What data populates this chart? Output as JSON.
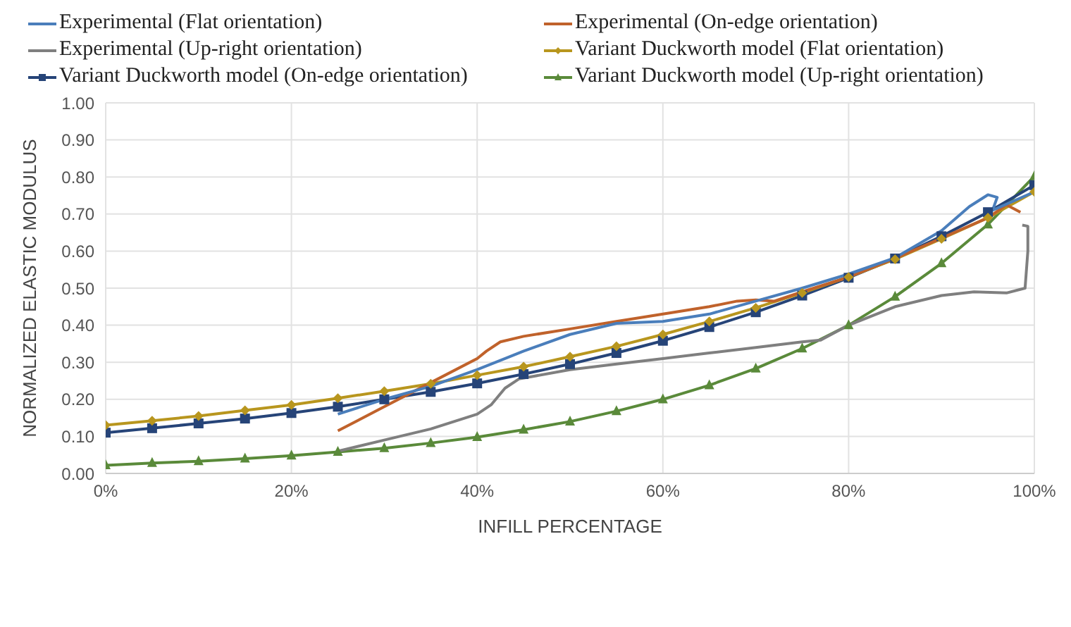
{
  "chart_data": {
    "type": "line",
    "xlabel": "INFILL PERCENTAGE",
    "ylabel": "NORMALIZED ELASTIC MODULUS",
    "xlim": [
      0,
      100
    ],
    "xticks": [
      {
        "value": 0,
        "label": "0%"
      },
      {
        "value": 20,
        "label": "20%"
      },
      {
        "value": 40,
        "label": "40%"
      },
      {
        "value": 60,
        "label": "60%"
      },
      {
        "value": 80,
        "label": "80%"
      },
      {
        "value": 100,
        "label": "100%"
      }
    ],
    "ylim": [
      0,
      1
    ],
    "yticks": [
      {
        "value": 0,
        "label": "0.00"
      },
      {
        "value": 0.1,
        "label": "0.10"
      },
      {
        "value": 0.2,
        "label": "0.20"
      },
      {
        "value": 0.3,
        "label": "0.30"
      },
      {
        "value": 0.4,
        "label": "0.40"
      },
      {
        "value": 0.5,
        "label": "0.50"
      },
      {
        "value": 0.6,
        "label": "0.60"
      },
      {
        "value": 0.7,
        "label": "0.70"
      },
      {
        "value": 0.8,
        "label": "0.80"
      },
      {
        "value": 0.9,
        "label": "0.90"
      },
      {
        "value": 1,
        "label": "1.00"
      }
    ],
    "grid": true,
    "legend": "top",
    "series": [
      {
        "name": "Experimental (Flat orientation)",
        "color": "#4a7ebb",
        "marker": "none",
        "x": [
          25,
          30,
          35,
          40,
          45,
          50,
          55,
          60,
          65,
          70,
          75,
          80,
          85,
          90,
          93,
          95,
          96,
          95.5,
          100
        ],
        "values": [
          0.16,
          0.2,
          0.235,
          0.28,
          0.33,
          0.375,
          0.405,
          0.41,
          0.43,
          0.465,
          0.5,
          0.538,
          0.582,
          0.655,
          0.72,
          0.752,
          0.745,
          0.71,
          0.76
        ]
      },
      {
        "name": "Experimental (On-edge orientation)",
        "color": "#c0622b",
        "marker": "none",
        "x": [
          25,
          30,
          35,
          40,
          41,
          42.5,
          45,
          50,
          55,
          60,
          65,
          68,
          70,
          72,
          75,
          80,
          85,
          90,
          95,
          97,
          98.5
        ],
        "values": [
          0.115,
          0.18,
          0.245,
          0.31,
          0.33,
          0.355,
          0.37,
          0.39,
          0.41,
          0.43,
          0.45,
          0.465,
          0.468,
          0.465,
          0.49,
          0.53,
          0.58,
          0.635,
          0.69,
          0.725,
          0.705
        ]
      },
      {
        "name": "Experimental (Up-right orientation)",
        "color": "#7f7f7f",
        "marker": "none",
        "x": [
          25,
          30,
          35,
          40,
          41.5,
          43,
          44.5,
          50,
          55,
          60,
          65,
          70,
          75,
          77,
          80,
          85,
          90,
          93.5,
          97,
          99,
          99.3,
          99.3,
          98.7
        ],
        "values": [
          0.06,
          0.09,
          0.12,
          0.16,
          0.185,
          0.23,
          0.255,
          0.28,
          0.295,
          0.31,
          0.325,
          0.34,
          0.355,
          0.36,
          0.4,
          0.45,
          0.48,
          0.49,
          0.487,
          0.5,
          0.6,
          0.667,
          0.67
        ]
      },
      {
        "name": "Variant Duckworth model (Flat orientation)",
        "color": "#b8961e",
        "marker": "diamond",
        "x": [
          0,
          5,
          10,
          15,
          20,
          25,
          30,
          35,
          40,
          45,
          50,
          55,
          60,
          65,
          70,
          75,
          80,
          85,
          90,
          95,
          100
        ],
        "values": [
          0.13,
          0.142,
          0.155,
          0.17,
          0.185,
          0.203,
          0.222,
          0.242,
          0.265,
          0.288,
          0.315,
          0.343,
          0.375,
          0.41,
          0.447,
          0.487,
          0.53,
          0.578,
          0.633,
          0.69,
          0.76
        ]
      },
      {
        "name": "Variant Duckworth model (On-edge orientation)",
        "color": "#264478",
        "marker": "square",
        "x": [
          0,
          5,
          10,
          15,
          20,
          25,
          30,
          35,
          40,
          45,
          50,
          55,
          60,
          65,
          70,
          75,
          80,
          85,
          90,
          95,
          100
        ],
        "values": [
          0.11,
          0.122,
          0.135,
          0.148,
          0.163,
          0.18,
          0.2,
          0.22,
          0.243,
          0.268,
          0.295,
          0.325,
          0.358,
          0.395,
          0.435,
          0.48,
          0.528,
          0.58,
          0.64,
          0.705,
          0.778
        ]
      },
      {
        "name": "Variant Duckworth model (Up-right orientation)",
        "color": "#5a8a3a",
        "marker": "triangle",
        "x": [
          0,
          5,
          10,
          15,
          20,
          25,
          30,
          35,
          40,
          45,
          50,
          55,
          60,
          65,
          70,
          75,
          80,
          85,
          90,
          95,
          100
        ],
        "values": [
          0.022,
          0.028,
          0.033,
          0.04,
          0.048,
          0.058,
          0.068,
          0.082,
          0.098,
          0.118,
          0.14,
          0.168,
          0.2,
          0.238,
          0.283,
          0.337,
          0.4,
          0.477,
          0.567,
          0.672,
          0.802
        ]
      }
    ]
  }
}
